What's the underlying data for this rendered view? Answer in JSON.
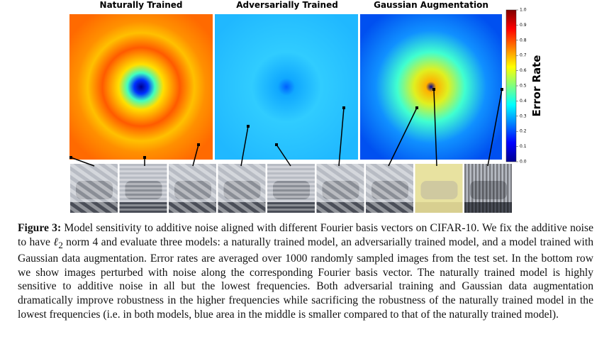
{
  "figure": {
    "panels": [
      {
        "title": "Naturally Trained"
      },
      {
        "title": "Adversarially Trained"
      },
      {
        "title": "Gaussian Augmentation"
      }
    ],
    "colorbar": {
      "label": "Error Rate",
      "range": [
        0,
        1
      ],
      "ticks": [
        {
          "value": 0,
          "label": "0.0"
        },
        {
          "value": 0.1,
          "label": "0.1"
        },
        {
          "value": 0.2,
          "label": "0.2"
        },
        {
          "value": 0.3,
          "label": "0.3"
        },
        {
          "value": 0.4,
          "label": "0.4"
        },
        {
          "value": 0.5,
          "label": "0.5"
        },
        {
          "value": 0.6,
          "label": "0.6"
        },
        {
          "value": 0.7,
          "label": "0.7"
        },
        {
          "value": 0.8,
          "label": "0.8"
        },
        {
          "value": 0.9,
          "label": "0.9"
        },
        {
          "value": 1,
          "label": "1.0"
        }
      ]
    },
    "caption": {
      "label": "Figure 3:",
      "text_before": " Model sensitivity to additive noise aligned with different Fourier basis vectors on CIFAR-10. We fix the additive noise to have ",
      "math": "ℓ",
      "math_sub": "2",
      "text_after": " norm 4 and evaluate three models: a naturally trained model, an adversarially trained model, and a model trained with Gaussian data augmentation. Error rates are averaged over 1000 randomly sampled images from the test set. In the bottom row we show images perturbed with noise along the corresponding Fourier basis vector. The naturally trained model is highly sensitive to additive noise in all but the lowest frequencies. Both adversarial training and Gaussian data augmentation dramatically improve robustness in the higher frequencies while sacrificing the robustness of the naturally trained model in the lowest frequencies (i.e. in both models, blue area in the middle is smaller compared to that of the naturally trained model)."
    }
  }
}
